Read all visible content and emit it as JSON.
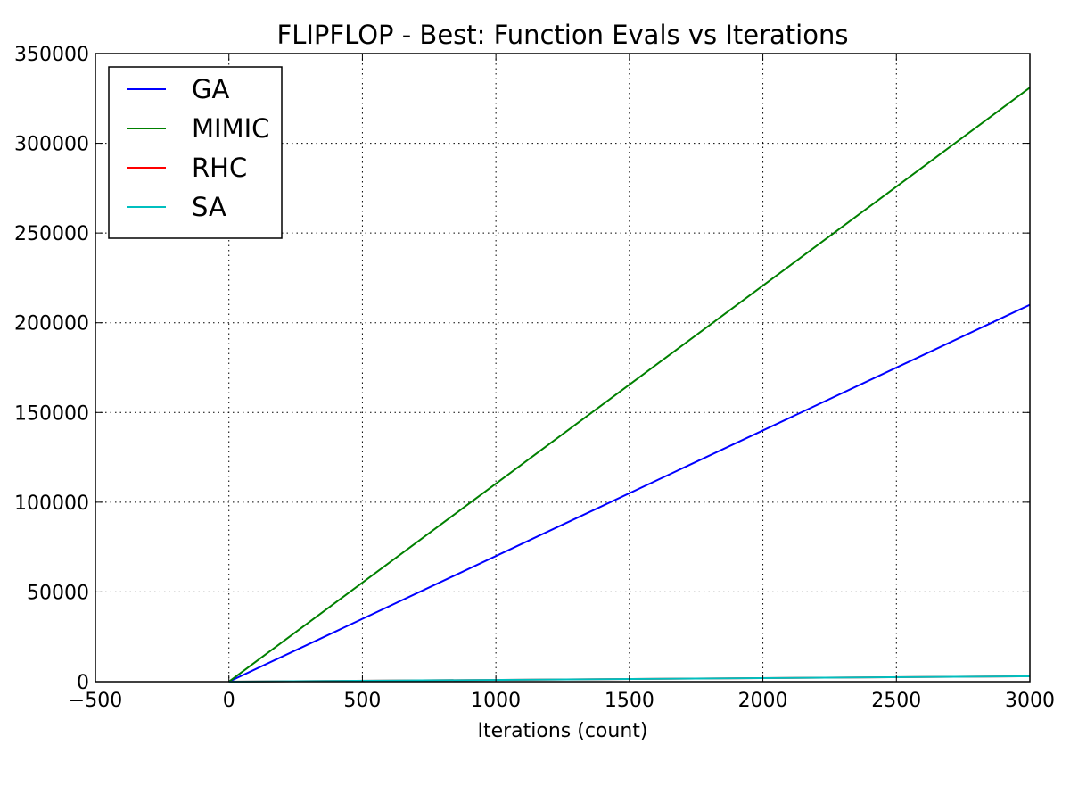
{
  "chart_data": {
    "type": "line",
    "title": "FLIPFLOP - Best: Function Evals vs Iterations",
    "xlabel": "Iterations (count)",
    "ylabel": "",
    "xlim": [
      -500,
      3000
    ],
    "ylim": [
      0,
      350000
    ],
    "grid": true,
    "legend_position": "upper-left",
    "x_ticks": [
      -500,
      0,
      500,
      1000,
      1500,
      2000,
      2500,
      3000
    ],
    "x_tick_labels": [
      "−500",
      "0",
      "500",
      "1000",
      "1500",
      "2000",
      "2500",
      "3000"
    ],
    "y_ticks": [
      0,
      50000,
      100000,
      150000,
      200000,
      250000,
      300000,
      350000
    ],
    "y_tick_labels": [
      "0",
      "50000",
      "100000",
      "150000",
      "200000",
      "250000",
      "300000",
      "350000"
    ],
    "series": [
      {
        "name": "GA",
        "color": "#0000ff",
        "x": [
          0,
          3000
        ],
        "y": [
          0,
          210000
        ]
      },
      {
        "name": "MIMIC",
        "color": "#008000",
        "x": [
          0,
          3000
        ],
        "y": [
          0,
          331000
        ]
      },
      {
        "name": "RHC",
        "color": "#ff0000",
        "x": [
          0,
          3000
        ],
        "y": [
          0,
          3000
        ]
      },
      {
        "name": "SA",
        "color": "#00bfbf",
        "x": [
          0,
          3000
        ],
        "y": [
          0,
          3000
        ]
      }
    ]
  }
}
